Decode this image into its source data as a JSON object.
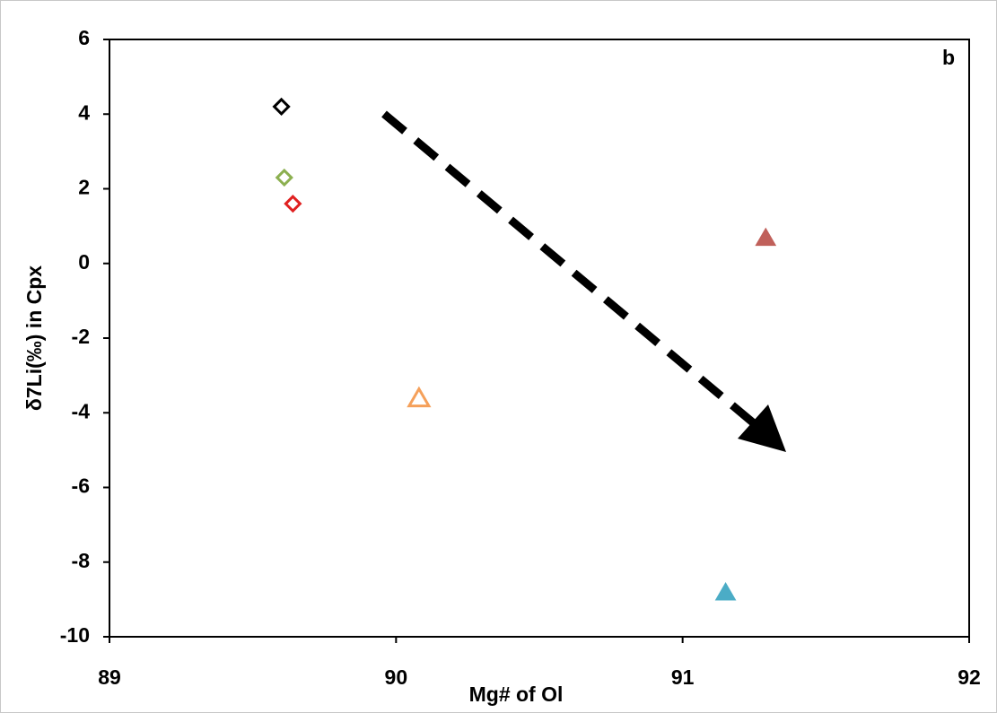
{
  "chart_data": {
    "type": "scatter",
    "panel_label": "b",
    "xlabel": "Mg# of Ol",
    "ylabel": "δ7Li(‰) in Cpx",
    "xlim": [
      89,
      92
    ],
    "xticks": [
      89,
      90,
      91,
      92
    ],
    "ylim": [
      -10,
      6
    ],
    "yticks": [
      -10,
      -8,
      -6,
      -4,
      -2,
      0,
      2,
      4,
      6
    ],
    "grid": false,
    "series": [
      {
        "color": "#000000",
        "marker": "diamond",
        "filled": false,
        "x": [
          89.6
        ],
        "values": [
          4.2
        ]
      },
      {
        "color": "#8cb050",
        "marker": "diamond",
        "filled": false,
        "x": [
          89.61
        ],
        "values": [
          2.3
        ]
      },
      {
        "color": "#e02020",
        "marker": "diamond",
        "filled": false,
        "x": [
          89.64
        ],
        "values": [
          1.6
        ]
      },
      {
        "color": "#f5a05a",
        "marker": "triangle",
        "filled": false,
        "x": [
          90.08
        ],
        "values": [
          -3.6
        ]
      },
      {
        "color": "#c0605a",
        "marker": "triangle",
        "filled": true,
        "x": [
          91.29
        ],
        "values": [
          0.7
        ]
      },
      {
        "color": "#4bacc6",
        "marker": "triangle",
        "filled": true,
        "x": [
          91.15
        ],
        "values": [
          -8.8
        ]
      }
    ]
  }
}
